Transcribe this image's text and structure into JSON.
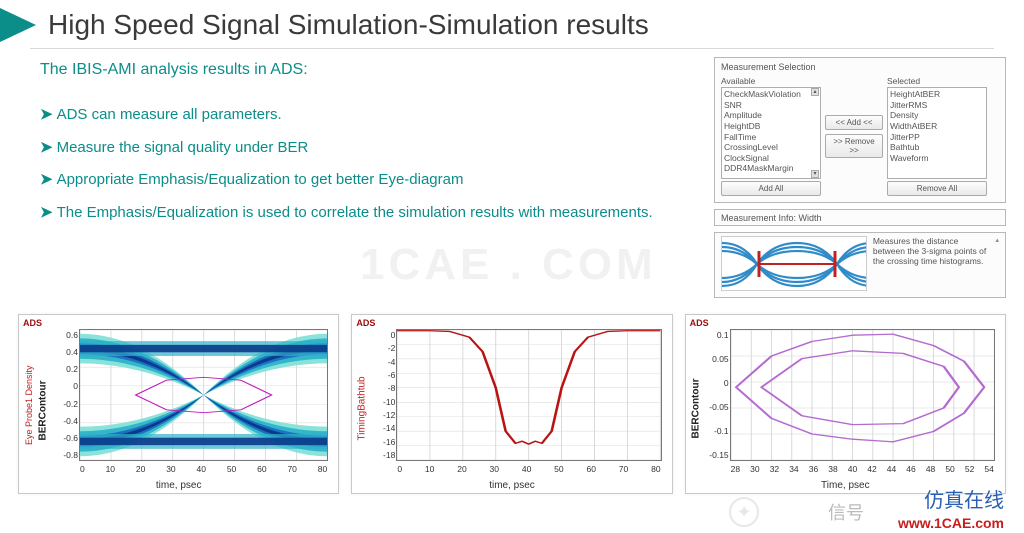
{
  "title": "High Speed Signal Simulation-Simulation results",
  "intro": "The IBIS-AMI analysis results in ADS:",
  "bullets": [
    "ADS can measure all parameters.",
    "Measure the signal quality under BER",
    "Appropriate Emphasis/Equalization  to get better Eye-diagram",
    "The Emphasis/Equalization  is used to correlate the simulation results with measurements."
  ],
  "accent_color": "#0b8d8a",
  "panel": {
    "title": "Measurement Selection",
    "available_label": "Available",
    "selected_label": "Selected",
    "available": [
      "CheckMaskViolation",
      "SNR",
      "Amplitude",
      "HeightDB",
      "FallTime",
      "CrossingLevel",
      "ClockSignal",
      "DDR4MaskMargin"
    ],
    "selected": [
      "HeightAtBER",
      "JitterRMS",
      "Density",
      "WidthAtBER",
      "JitterPP",
      "Bathtub",
      "Waveform"
    ],
    "btn_add": "<< Add <<",
    "btn_remove": ">> Remove >>",
    "btn_add_all": "Add All",
    "btn_remove_all": "Remove All"
  },
  "info_panel": {
    "title": "Measurement Info: Width",
    "text": "Measures the distance between the 3-sigma points of the crossing time histograms.",
    "stroke": "#1a7fc4",
    "marker": "#c42020"
  },
  "charts": {
    "eye": {
      "ads": "ADS",
      "ylabel_red": "Eye Probe1 Density",
      "ylabel_black": "BERContour",
      "xlabel": "time, psec",
      "xmin": 0,
      "xmax": 80,
      "xstep": 10,
      "ymin": -0.8,
      "ymax": 0.6,
      "ystep": 0.2,
      "grid_color": "#d4d4d4",
      "colors": [
        "#0a3a8a",
        "#1a6fc4",
        "#2fb2c9",
        "#7de0d6",
        "#e4f7f0"
      ],
      "contour_color": "#c018c0",
      "contour": [
        [
          18,
          0.0
        ],
        [
          28,
          0.16
        ],
        [
          40,
          0.19
        ],
        [
          52,
          0.16
        ],
        [
          62,
          0.0
        ],
        [
          52,
          -0.16
        ],
        [
          40,
          -0.19
        ],
        [
          28,
          -0.16
        ],
        [
          18,
          0.0
        ]
      ]
    },
    "bathtub": {
      "ads": "ADS",
      "ylabel": "TimingBathtub",
      "xlabel": "time, psec",
      "xmin": 0,
      "xmax": 80,
      "xstep": 10,
      "ymin": -18,
      "ymax": 0,
      "ystep": 2,
      "grid_color": "#d4d4d4",
      "line_color": "#b81414",
      "line_width": 2,
      "points": [
        [
          0,
          -0.1
        ],
        [
          10,
          -0.1
        ],
        [
          16,
          -0.2
        ],
        [
          22,
          -1.0
        ],
        [
          26,
          -3
        ],
        [
          30,
          -8
        ],
        [
          33,
          -14
        ],
        [
          36,
          -15.7
        ],
        [
          38,
          -15.4
        ],
        [
          40,
          -15.8
        ],
        [
          42,
          -15.4
        ],
        [
          44,
          -15.7
        ],
        [
          47,
          -14
        ],
        [
          50,
          -8
        ],
        [
          54,
          -3
        ],
        [
          58,
          -1.0
        ],
        [
          64,
          -0.2
        ],
        [
          70,
          -0.1
        ],
        [
          80,
          -0.1
        ]
      ]
    },
    "bercontour": {
      "ads": "ADS",
      "ylabel": "BERContour",
      "xlabel": "Time, psec",
      "xmin": 28,
      "xmax": 54,
      "xstep": 2,
      "ymin": -0.15,
      "ymax": 0.1,
      "ystep": 0.05,
      "grid_color": "#d4d4d4",
      "line_color": "#b46bd0",
      "line_width": 2,
      "outer": [
        [
          28.5,
          -0.01
        ],
        [
          32,
          0.05
        ],
        [
          36,
          0.078
        ],
        [
          40,
          0.09
        ],
        [
          44,
          0.092
        ],
        [
          48,
          0.07
        ],
        [
          51,
          0.04
        ],
        [
          53,
          -0.01
        ],
        [
          51,
          -0.06
        ],
        [
          48,
          -0.095
        ],
        [
          44,
          -0.115
        ],
        [
          40,
          -0.11
        ],
        [
          36,
          -0.1
        ],
        [
          32,
          -0.07
        ],
        [
          28.5,
          -0.01
        ]
      ],
      "inner": [
        [
          31,
          -0.01
        ],
        [
          35,
          0.045
        ],
        [
          40,
          0.06
        ],
        [
          45,
          0.055
        ],
        [
          49,
          0.03
        ],
        [
          50.5,
          -0.01
        ],
        [
          49,
          -0.05
        ],
        [
          45,
          -0.08
        ],
        [
          40,
          -0.082
        ],
        [
          35,
          -0.065
        ],
        [
          31,
          -0.01
        ]
      ]
    }
  },
  "watermark": "1CAE . COM",
  "footer": {
    "cn": "仿真在线",
    "url": "www.1CAE.com",
    "wx": "信号"
  }
}
